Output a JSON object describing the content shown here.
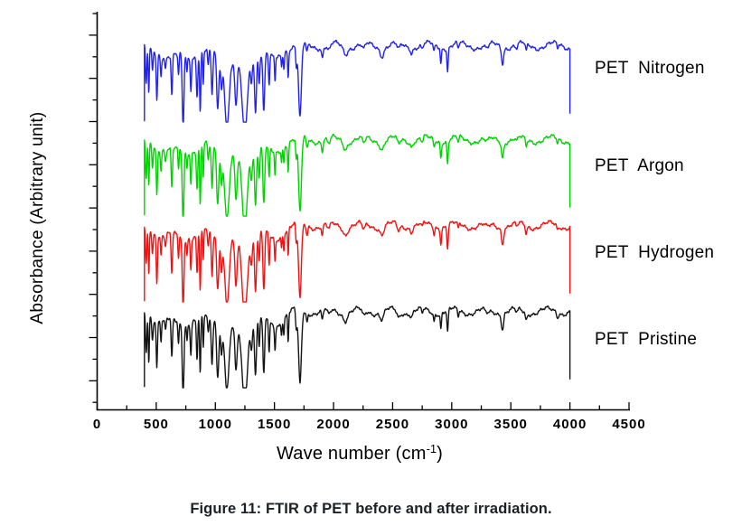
{
  "figure": {
    "caption_label": "Figure 11:",
    "caption_text": "FTIR of PET before and after irradiation."
  },
  "chart_data": {
    "type": "line",
    "title": "",
    "xlabel": "Wave number (cm⁻¹)",
    "xlabel_parts": {
      "prefix": "Wave number (cm",
      "superscript": "-1",
      "suffix": ")"
    },
    "ylabel": "Absorbance (Arbitrary unit)",
    "x_axis": {
      "min": 0,
      "max": 4500,
      "major_ticks": [
        0,
        500,
        1000,
        1500,
        2000,
        2500,
        3000,
        3500,
        4000,
        4500
      ],
      "minor_tick_step": 250,
      "tick_direction": "in"
    },
    "y_axis": {
      "tick_labels": "none (arbitrary units)",
      "tick_direction": "out",
      "minor_major_alternating_ticks": 19
    },
    "data_x_range_cm1": [
      400,
      4000
    ],
    "series": [
      {
        "name": "PET Nitrogen",
        "label": "PET  Nitrogen",
        "color": "#2222ee"
      },
      {
        "name": "PET Argon",
        "label": "PET  Argon",
        "color": "#00d400"
      },
      {
        "name": "PET Hydrogen",
        "label": "PET  Hydrogen",
        "color": "#f01212"
      },
      {
        "name": "PET Pristine",
        "label": "PET  Pristine",
        "color": "#141414"
      }
    ],
    "band_fields": [
      "center_cm1",
      "relative_depth",
      "width_cm1"
    ],
    "absorption_bands": [
      [
        415,
        0.5,
        8
      ],
      [
        437,
        0.6,
        6
      ],
      [
        468,
        0.28,
        8
      ],
      [
        505,
        0.6,
        8
      ],
      [
        540,
        0.26,
        7
      ],
      [
        578,
        0.15,
        8
      ],
      [
        632,
        0.52,
        8
      ],
      [
        688,
        0.28,
        7
      ],
      [
        727,
        0.93,
        10
      ],
      [
        760,
        0.2,
        6
      ],
      [
        793,
        0.4,
        7
      ],
      [
        845,
        0.52,
        8
      ],
      [
        872,
        0.76,
        7
      ],
      [
        898,
        0.42,
        6
      ],
      [
        940,
        0.22,
        8
      ],
      [
        972,
        0.58,
        10
      ],
      [
        700,
        0.15,
        260
      ],
      [
        1200,
        0.22,
        170
      ],
      [
        1500,
        0.18,
        80
      ],
      [
        1020,
        0.7,
        13
      ],
      [
        1052,
        0.38,
        10
      ],
      [
        1098,
        0.85,
        26
      ],
      [
        1175,
        0.6,
        14
      ],
      [
        1248,
        0.98,
        30
      ],
      [
        1305,
        0.3,
        10
      ],
      [
        1340,
        0.7,
        11
      ],
      [
        1371,
        0.38,
        8
      ],
      [
        1410,
        0.76,
        11
      ],
      [
        1455,
        0.4,
        7
      ],
      [
        1505,
        0.3,
        6
      ],
      [
        1560,
        0.15,
        6
      ],
      [
        1580,
        0.2,
        6
      ],
      [
        1616,
        0.36,
        6
      ],
      [
        1685,
        0.25,
        8
      ],
      [
        1716,
        0.98,
        17
      ],
      [
        1775,
        0.12,
        9
      ],
      [
        1905,
        0.13,
        10
      ],
      [
        1960,
        0.08,
        18
      ],
      [
        2100,
        0.09,
        24
      ],
      [
        2255,
        0.08,
        18
      ],
      [
        2410,
        0.1,
        22
      ],
      [
        2550,
        0.08,
        18
      ],
      [
        2660,
        0.06,
        13
      ],
      [
        2750,
        0.06,
        10
      ],
      [
        2850,
        0.1,
        8
      ],
      [
        2908,
        0.2,
        7
      ],
      [
        2965,
        0.3,
        8
      ],
      [
        3055,
        0.08,
        8
      ],
      [
        3300,
        0.05,
        30
      ],
      [
        3430,
        0.2,
        13
      ],
      [
        3550,
        0.05,
        14
      ],
      [
        3630,
        0.1,
        10
      ],
      [
        3895,
        0.06,
        9
      ]
    ],
    "baseline_waviness": {
      "offset": 0.065,
      "amplitude": 0.05,
      "period_cm1": 265
    },
    "trace_edges": {
      "start_depth": 1.05,
      "end_depth": 0.95
    }
  }
}
